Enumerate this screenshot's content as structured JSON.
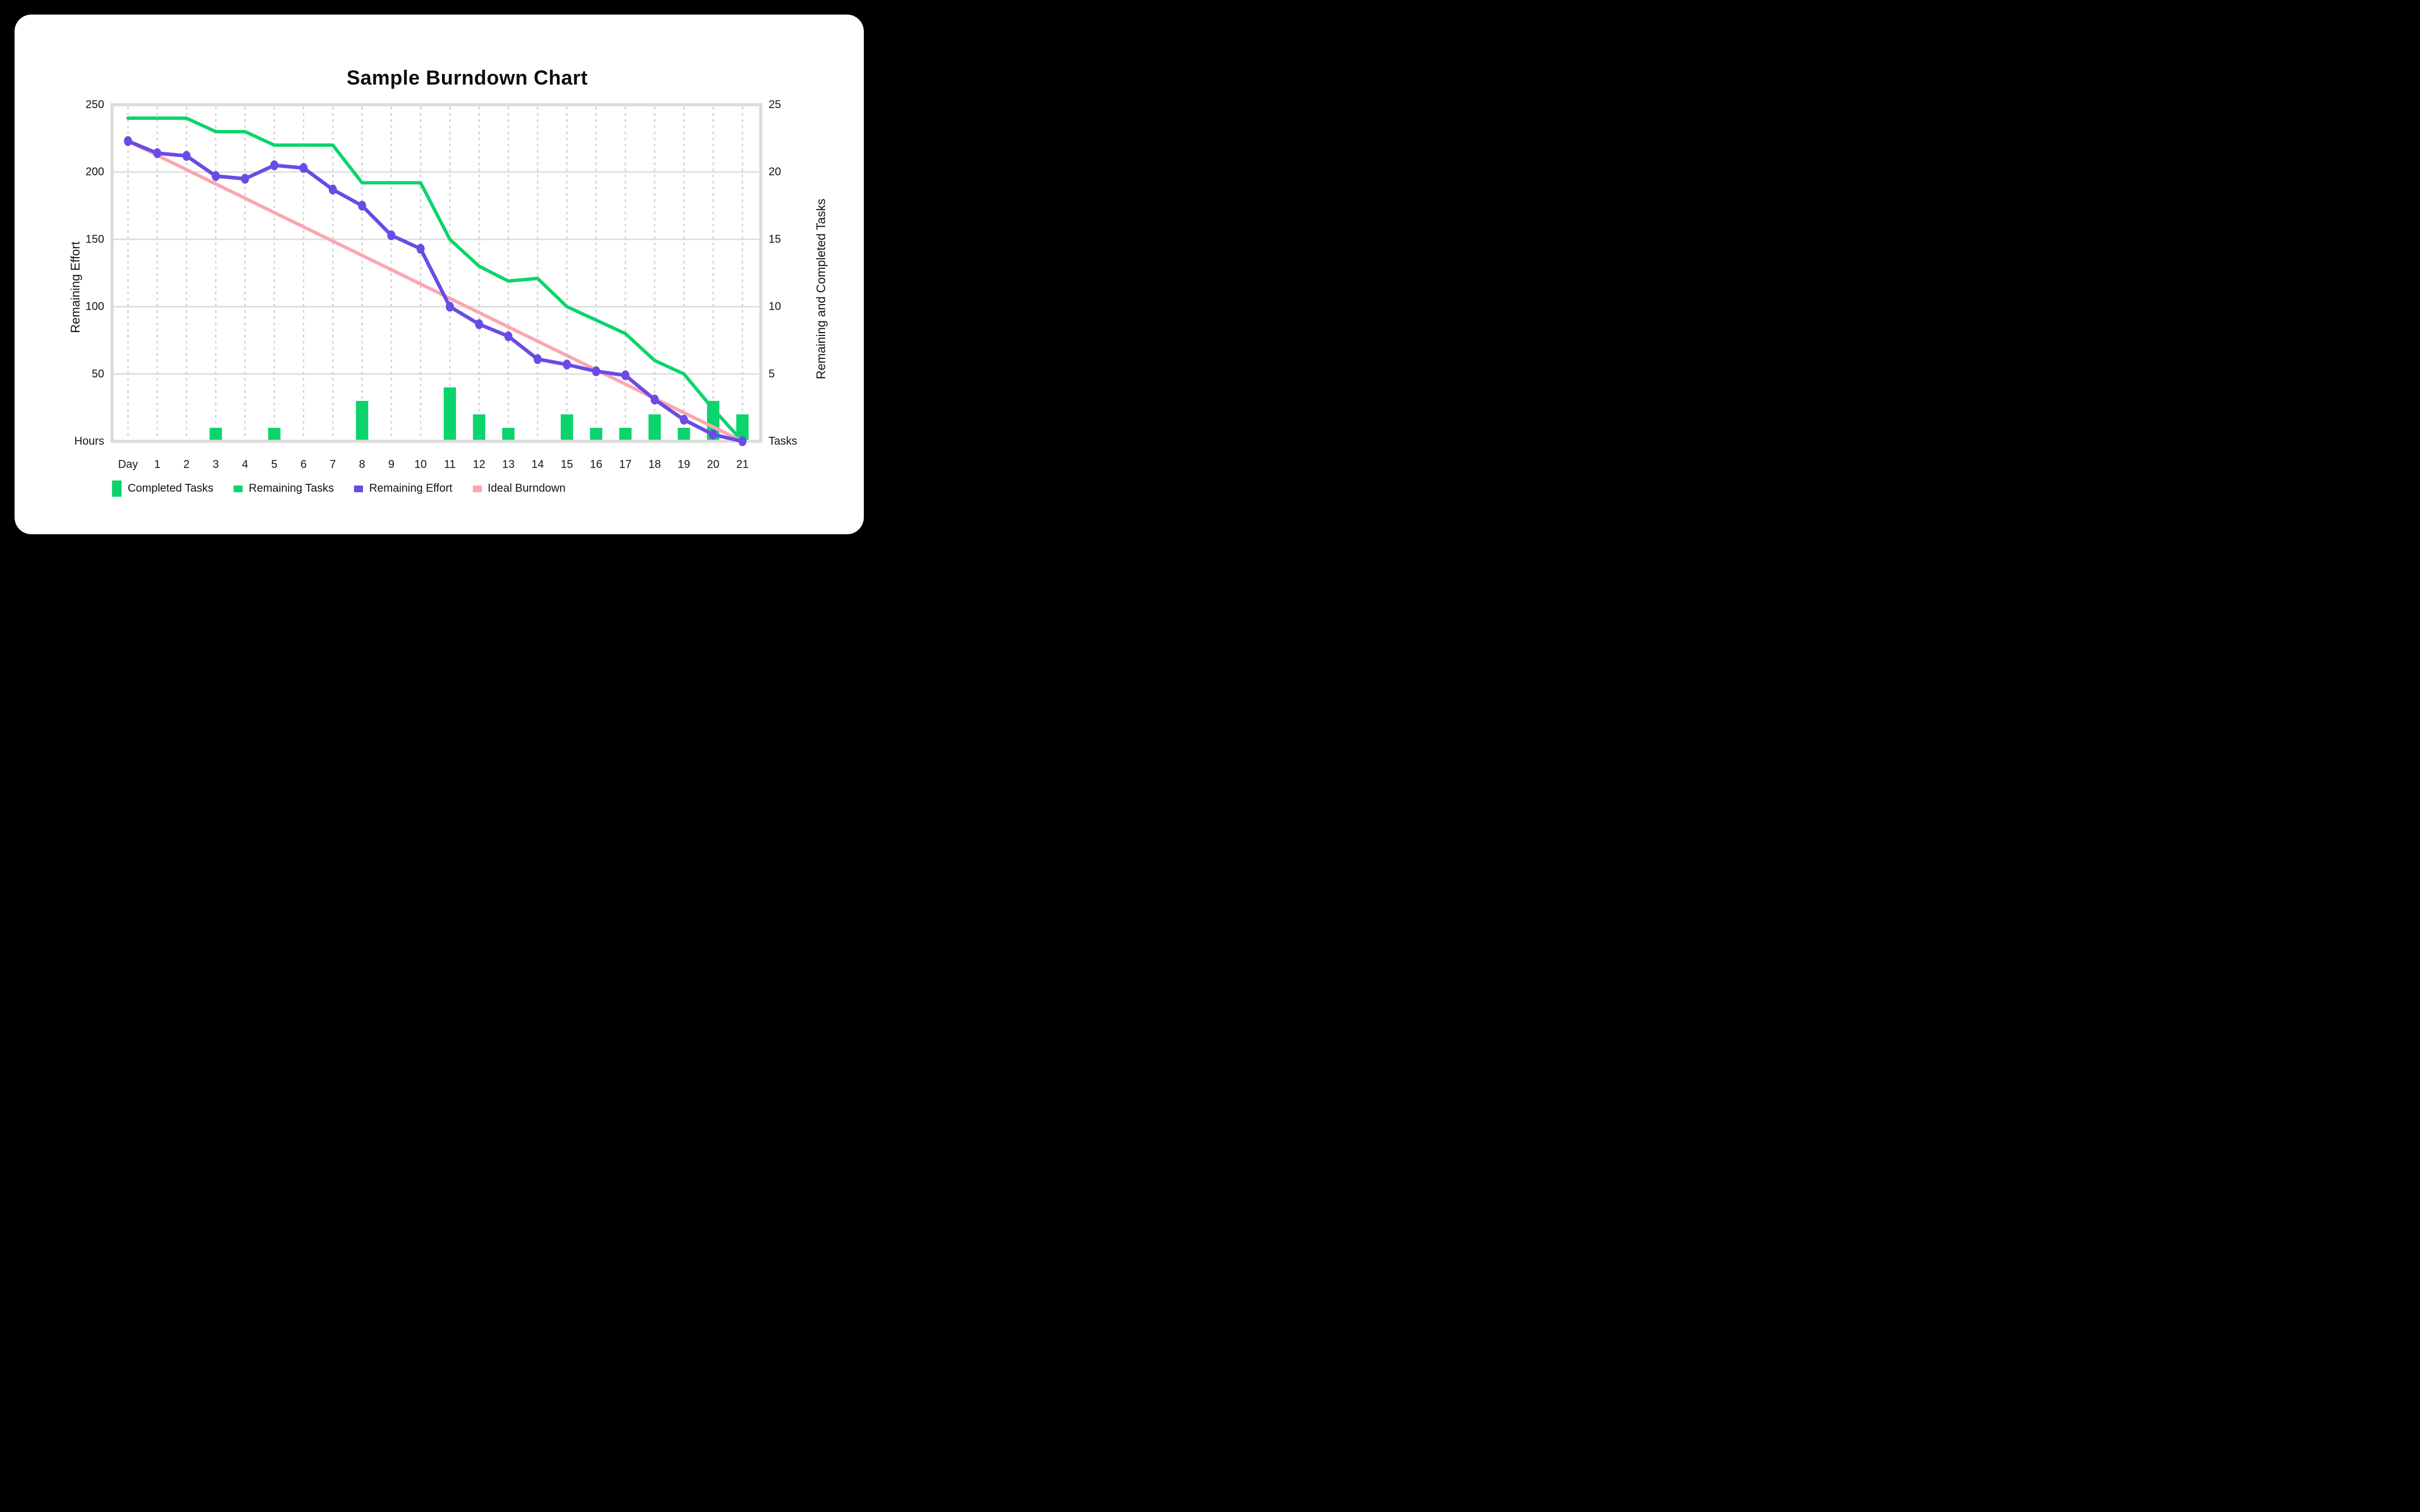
{
  "page": {
    "frame_background": "#000000",
    "card_background": "#ffffff"
  },
  "chart_data": {
    "type": "composite",
    "title": "Sample Burndown Chart",
    "x_axis": {
      "tick_labels": [
        "Day",
        "1",
        "2",
        "3",
        "4",
        "5",
        "6",
        "7",
        "8",
        "9",
        "10",
        "11",
        "12",
        "13",
        "14",
        "15",
        "16",
        "17",
        "18",
        "19",
        "20",
        "21"
      ]
    },
    "left_axis": {
      "title": "Remaining Effort",
      "tick_values": [
        250,
        200,
        150,
        100,
        50
      ],
      "zero_label": "Hours",
      "range": [
        0,
        250
      ],
      "units": "hours"
    },
    "right_axis": {
      "title": "Remaining and Completed Tasks",
      "tick_values": [
        25,
        20,
        15,
        10,
        5
      ],
      "zero_label": "Tasks",
      "range": [
        0,
        25
      ],
      "units": "tasks"
    },
    "series": {
      "completed_tasks": {
        "label": "Completed Tasks",
        "type": "bar",
        "axis": "right",
        "color": "#0cd46c",
        "values": [
          0,
          0,
          0,
          1,
          0,
          1,
          0,
          0,
          3,
          0,
          0,
          4,
          2,
          1,
          0,
          2,
          1,
          1,
          2,
          1,
          3,
          2
        ]
      },
      "remaining_tasks": {
        "label": "Remaining Tasks",
        "type": "line",
        "axis": "right",
        "color": "#0cd46c",
        "values": [
          24,
          24,
          24,
          23,
          23,
          22,
          22,
          22,
          19.2,
          19.2,
          19.2,
          15,
          13,
          11.9,
          12.1,
          10,
          9,
          8,
          6,
          5,
          2.4,
          0
        ]
      },
      "remaining_effort": {
        "label": "Remaining Effort",
        "type": "line",
        "axis": "left",
        "color": "#6a4be4",
        "show_points": true,
        "values": [
          223,
          214,
          212,
          197,
          195,
          205,
          203,
          187,
          175,
          153,
          143,
          100,
          87,
          78,
          61,
          57,
          52,
          49,
          31,
          16,
          5,
          0
        ]
      },
      "ideal_burndown": {
        "label": "Ideal Burndown",
        "type": "line",
        "axis": "left",
        "color": "#fba6b0",
        "start": 223,
        "end": 0
      }
    },
    "legend": [
      {
        "label": "Completed Tasks",
        "color": "#0cd46c",
        "swatch": "bar"
      },
      {
        "label": "Remaining Tasks",
        "color": "#0cd46c",
        "swatch": "line"
      },
      {
        "label": "Remaining Effort",
        "color": "#6a4be4",
        "swatch": "line"
      },
      {
        "label": "Ideal Burndown",
        "color": "#fba6b0",
        "swatch": "line"
      }
    ],
    "layout": {
      "grid_horizontal": true,
      "grid_vertical_dashed": true,
      "grid_h_color": "#dcdcdc",
      "grid_v_color": "#d0d0d0",
      "plot_border_color": "#dcdcdc",
      "legend_position": "bottom-left"
    }
  }
}
